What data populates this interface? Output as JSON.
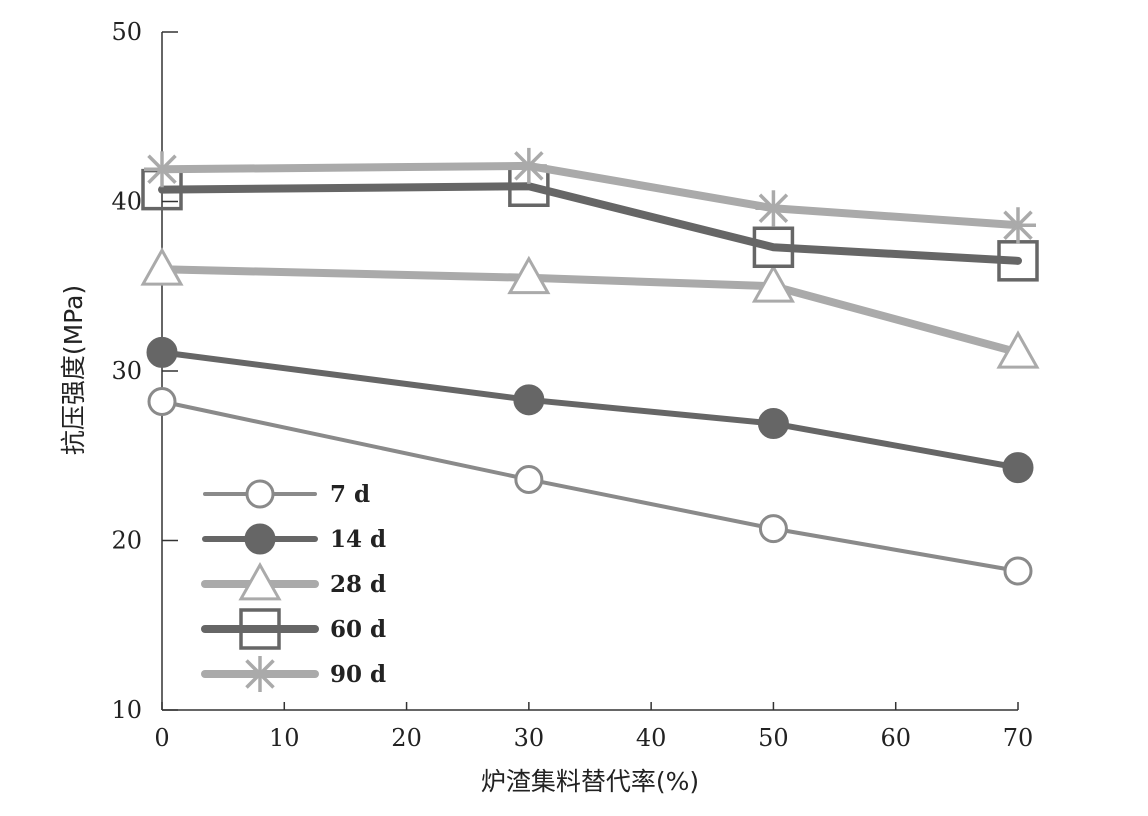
{
  "chart_data": {
    "type": "line",
    "title": "",
    "xlabel": "炉渣集料替代率(%)",
    "ylabel": "抗压强度(MPa)",
    "xlim": [
      0,
      70
    ],
    "ylim": [
      10,
      50
    ],
    "x_ticks": [
      "0",
      "10",
      "20",
      "30",
      "40",
      "50",
      "60",
      "70"
    ],
    "y_ticks": [
      "10",
      "20",
      "30",
      "40",
      "50"
    ],
    "x": [
      0,
      30,
      50,
      70
    ],
    "grid": false,
    "legend_position": "bottom-left",
    "series": [
      {
        "name": "7 d",
        "values": [
          28.2,
          23.6,
          20.7,
          18.2
        ],
        "marker": "open-circle",
        "color": "#8a8a8a",
        "line": "thin"
      },
      {
        "name": "14 d",
        "values": [
          31.1,
          28.3,
          26.9,
          24.3
        ],
        "marker": "filled-circle",
        "color": "#666666",
        "line": "medium"
      },
      {
        "name": "28 d",
        "values": [
          36.0,
          35.5,
          35.0,
          31.1
        ],
        "marker": "open-triangle",
        "color": "#aaaaaa",
        "line": "thick"
      },
      {
        "name": "60 d",
        "values": [
          40.7,
          40.9,
          37.3,
          36.5
        ],
        "marker": "open-square",
        "color": "#666666",
        "line": "thick"
      },
      {
        "name": "90 d",
        "values": [
          41.9,
          42.1,
          39.6,
          38.6
        ],
        "marker": "asterisk",
        "color": "#aaaaaa",
        "line": "thick"
      }
    ]
  }
}
